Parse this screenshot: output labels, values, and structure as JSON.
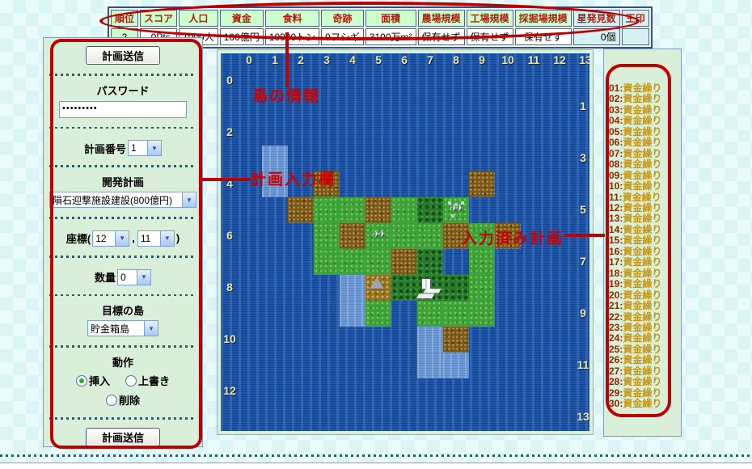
{
  "stats_table": {
    "headers": [
      {
        "label": "順位",
        "bg": "green"
      },
      {
        "label": "スコア",
        "bg": "green"
      },
      {
        "label": "人口",
        "bg": "green"
      },
      {
        "label": "資金",
        "bg": "green"
      },
      {
        "label": "食料",
        "bg": "green"
      },
      {
        "label": "奇跡",
        "bg": "green"
      },
      {
        "label": "面積",
        "bg": "green"
      },
      {
        "label": "農場規模",
        "bg": "green"
      },
      {
        "label": "工場規模",
        "bg": "green"
      },
      {
        "label": "採掘場規模",
        "bg": "green"
      },
      {
        "label": "星発見数",
        "bg": "cyan"
      },
      {
        "label": "王印",
        "bg": "cyan"
      }
    ],
    "values": [
      {
        "text": "2",
        "bg": "green",
        "align": "ctr"
      },
      {
        "text": "0Pts.",
        "bg": "white",
        "align": "r"
      },
      {
        "text": "1000人",
        "bg": "white",
        "align": "r"
      },
      {
        "text": "100億円",
        "bg": "white",
        "align": "r"
      },
      {
        "text": "10000トン",
        "bg": "white",
        "align": "r"
      },
      {
        "text": "0フシギ",
        "bg": "white",
        "align": "r"
      },
      {
        "text": "3100万m²",
        "bg": "white",
        "align": "r"
      },
      {
        "text": "保有せず",
        "bg": "white",
        "align": "ctr"
      },
      {
        "text": "保有せず",
        "bg": "white",
        "align": "ctr"
      },
      {
        "text": "保有せず",
        "bg": "white",
        "align": "ctr"
      },
      {
        "text": "0個",
        "bg": "cyan",
        "align": "r"
      },
      {
        "text": "",
        "bg": "cyan",
        "align": "ctr"
      }
    ]
  },
  "left_panel": {
    "send_button_top": "計画送信",
    "send_button_bottom": "計画送信",
    "password_label": "パスワード",
    "password_value": "•••••••••",
    "plan_number_label": "計画番号",
    "plan_number_value": "1",
    "dev_plan_label": "開発計画",
    "dev_plan_value": "隕石迎撃施設建設(800億円)",
    "coord_label_open": "座標(",
    "coord_x": "12",
    "coord_separator": ",",
    "coord_y": "11",
    "coord_label_close": ")",
    "quantity_label": "数量",
    "quantity_value": "0",
    "target_island_label": "目標の島",
    "target_island_value": "貯金箱島",
    "action_label": "動作",
    "radio_insert": "挿入",
    "radio_overwrite": "上書き",
    "radio_delete": "削除",
    "radio_selected": "挿入"
  },
  "map": {
    "col_labels": [
      "0",
      "1",
      "2",
      "3",
      "4",
      "5",
      "6",
      "7",
      "8",
      "9",
      "10",
      "11",
      "12",
      "13"
    ],
    "row_labels": [
      "0",
      "1",
      "2",
      "3",
      "4",
      "5",
      "6",
      "7",
      "8",
      "9",
      "10",
      "11",
      "12",
      "13"
    ],
    "tiles": [
      {
        "c": 1,
        "r": 3,
        "t": "shallow"
      },
      {
        "c": 1,
        "r": 4,
        "t": "shallow"
      },
      {
        "c": 3,
        "r": 4,
        "t": "waste"
      },
      {
        "c": 9,
        "r": 4,
        "t": "waste"
      },
      {
        "c": 2,
        "r": 5,
        "t": "waste"
      },
      {
        "c": 3,
        "r": 5,
        "t": "plain"
      },
      {
        "c": 4,
        "r": 5,
        "t": "plain"
      },
      {
        "c": 5,
        "r": 5,
        "t": "waste"
      },
      {
        "c": 6,
        "r": 5,
        "t": "plain"
      },
      {
        "c": 7,
        "r": 5,
        "t": "forest"
      },
      {
        "c": 8,
        "r": 5,
        "t": "town"
      },
      {
        "c": 3,
        "r": 6,
        "t": "plain"
      },
      {
        "c": 4,
        "r": 6,
        "t": "waste"
      },
      {
        "c": 5,
        "r": 6,
        "t": "airfield"
      },
      {
        "c": 6,
        "r": 6,
        "t": "plain"
      },
      {
        "c": 7,
        "r": 6,
        "t": "plain"
      },
      {
        "c": 8,
        "r": 6,
        "t": "waste"
      },
      {
        "c": 9,
        "r": 6,
        "t": "plain"
      },
      {
        "c": 10,
        "r": 6,
        "t": "waste"
      },
      {
        "c": 3,
        "r": 7,
        "t": "plain"
      },
      {
        "c": 4,
        "r": 7,
        "t": "plain"
      },
      {
        "c": 5,
        "r": 7,
        "t": "plain"
      },
      {
        "c": 6,
        "r": 7,
        "t": "waste"
      },
      {
        "c": 7,
        "r": 7,
        "t": "forest"
      },
      {
        "c": 9,
        "r": 7,
        "t": "plain"
      },
      {
        "c": 4,
        "r": 8,
        "t": "shallow"
      },
      {
        "c": 5,
        "r": 8,
        "t": "mountain"
      },
      {
        "c": 6,
        "r": 8,
        "t": "forest"
      },
      {
        "c": 7,
        "r": 8,
        "t": "factory"
      },
      {
        "c": 8,
        "r": 8,
        "t": "forest"
      },
      {
        "c": 9,
        "r": 8,
        "t": "plain"
      },
      {
        "c": 4,
        "r": 9,
        "t": "shallow"
      },
      {
        "c": 5,
        "r": 9,
        "t": "plain"
      },
      {
        "c": 7,
        "r": 9,
        "t": "plain"
      },
      {
        "c": 8,
        "r": 9,
        "t": "plain"
      },
      {
        "c": 9,
        "r": 9,
        "t": "plain"
      },
      {
        "c": 7,
        "r": 10,
        "t": "shallow"
      },
      {
        "c": 8,
        "r": 10,
        "t": "waste"
      },
      {
        "c": 7,
        "r": 11,
        "t": "shallow"
      },
      {
        "c": 8,
        "r": 11,
        "t": "shallow"
      }
    ]
  },
  "right_panel": {
    "items": [
      {
        "num": "01",
        "label": "資金繰り"
      },
      {
        "num": "02",
        "label": "資金繰り"
      },
      {
        "num": "03",
        "label": "資金繰り"
      },
      {
        "num": "04",
        "label": "資金繰り"
      },
      {
        "num": "05",
        "label": "資金繰り"
      },
      {
        "num": "06",
        "label": "資金繰り"
      },
      {
        "num": "07",
        "label": "資金繰り"
      },
      {
        "num": "08",
        "label": "資金繰り"
      },
      {
        "num": "09",
        "label": "資金繰り"
      },
      {
        "num": "10",
        "label": "資金繰り"
      },
      {
        "num": "11",
        "label": "資金繰り"
      },
      {
        "num": "12",
        "label": "資金繰り"
      },
      {
        "num": "13",
        "label": "資金繰り"
      },
      {
        "num": "14",
        "label": "資金繰り"
      },
      {
        "num": "15",
        "label": "資金繰り"
      },
      {
        "num": "16",
        "label": "資金繰り"
      },
      {
        "num": "17",
        "label": "資金繰り"
      },
      {
        "num": "18",
        "label": "資金繰り"
      },
      {
        "num": "19",
        "label": "資金繰り"
      },
      {
        "num": "20",
        "label": "資金繰り"
      },
      {
        "num": "21",
        "label": "資金繰り"
      },
      {
        "num": "22",
        "label": "資金繰り"
      },
      {
        "num": "23",
        "label": "資金繰り"
      },
      {
        "num": "24",
        "label": "資金繰り"
      },
      {
        "num": "25",
        "label": "資金繰り"
      },
      {
        "num": "26",
        "label": "資金繰り"
      },
      {
        "num": "27",
        "label": "資金繰り"
      },
      {
        "num": "28",
        "label": "資金繰り"
      },
      {
        "num": "29",
        "label": "資金繰り"
      },
      {
        "num": "30",
        "label": "資金繰り"
      }
    ]
  },
  "annotations": {
    "island_info": "島の情報",
    "plan_input": "計画入力欄",
    "entered_plans": "入力済み計画",
    "accent_color": "#cc0000"
  },
  "colors": {
    "panel_green": "#d9efd9",
    "header_green": "#ccffcc",
    "pale_cyan": "#d6f1f1",
    "sea_blue": "#1d55a8",
    "shallow_blue": "#6d9ad5"
  }
}
